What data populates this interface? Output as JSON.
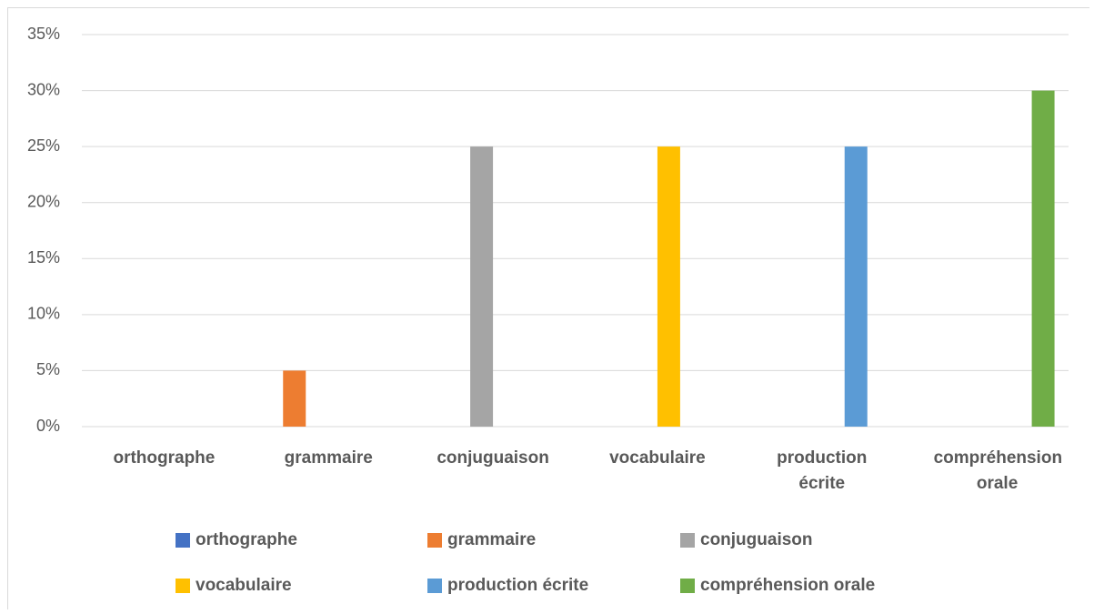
{
  "chart_data": {
    "type": "bar",
    "categories": [
      "orthographe",
      "grammaire",
      "conjuguaison",
      "vocabulaire",
      "production écrite",
      "compréhension orale"
    ],
    "series": [
      {
        "name": "orthographe",
        "color": "#4472c4",
        "values": [
          0,
          0,
          0,
          0,
          0,
          0
        ]
      },
      {
        "name": "grammaire",
        "color": "#ed7d31",
        "values": [
          0,
          5,
          0,
          0,
          0,
          0
        ]
      },
      {
        "name": "conjuguaison",
        "color": "#a5a5a5",
        "values": [
          0,
          0,
          25,
          0,
          0,
          0
        ]
      },
      {
        "name": "vocabulaire",
        "color": "#ffc000",
        "values": [
          0,
          0,
          0,
          25,
          0,
          0
        ]
      },
      {
        "name": "production écrite",
        "color": "#5b9bd5",
        "values": [
          0,
          0,
          0,
          0,
          25,
          0
        ]
      },
      {
        "name": "compréhension orale",
        "color": "#70ad47",
        "values": [
          0,
          0,
          0,
          0,
          0,
          30
        ]
      }
    ],
    "ylim": [
      0,
      35
    ],
    "yticks": [
      {
        "value": 0,
        "label": "0%"
      },
      {
        "value": 5,
        "label": "5%"
      },
      {
        "value": 10,
        "label": "10%"
      },
      {
        "value": 15,
        "label": "15%"
      },
      {
        "value": 20,
        "label": "20%"
      },
      {
        "value": 25,
        "label": "25%"
      },
      {
        "value": 30,
        "label": "30%"
      },
      {
        "value": 35,
        "label": "35%"
      }
    ],
    "grid": true,
    "legend": "bottom"
  }
}
